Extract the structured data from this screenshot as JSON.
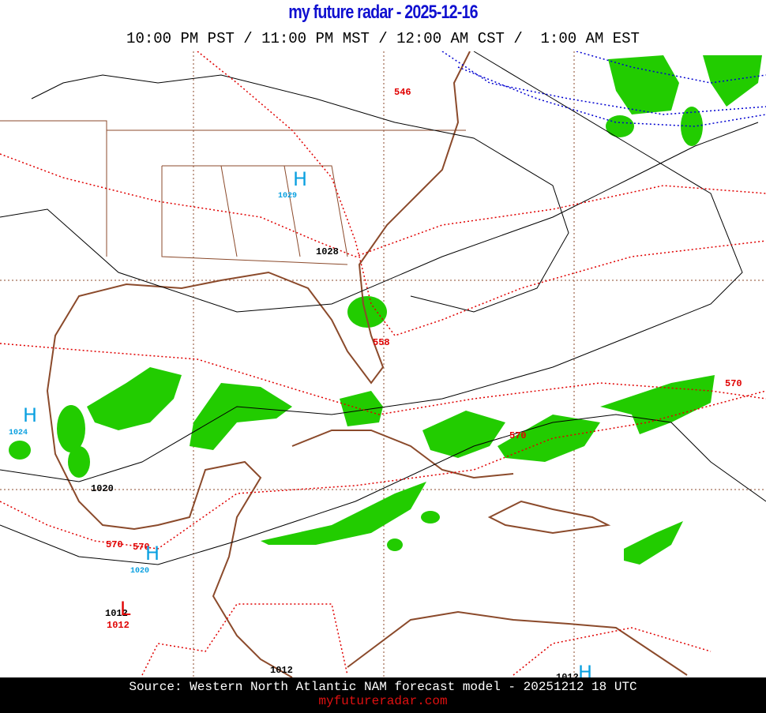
{
  "header": {
    "title": "my future radar - 2025-12-16",
    "times": "10:00 PM PST / 11:00 PM MST / 12:00 AM CST /  1:00 AM EST"
  },
  "map": {
    "contour_labels": [
      "546",
      "558",
      "570",
      "570",
      "570",
      "570"
    ],
    "isobar_labels": [
      "1028",
      "1020",
      "1012",
      "1012",
      "1012",
      "1012"
    ],
    "pressure_centers": [
      {
        "symbol": "H",
        "value": "1029"
      },
      {
        "symbol": "H",
        "value": "1024"
      },
      {
        "symbol": "H",
        "value": "1020"
      },
      {
        "symbol": "L"
      },
      {
        "symbol": "H"
      }
    ]
  },
  "footer": {
    "source": "Source: Western North Atlantic NAM forecast model - 20251212 18 UTC",
    "site": "myfutureradar.com"
  }
}
